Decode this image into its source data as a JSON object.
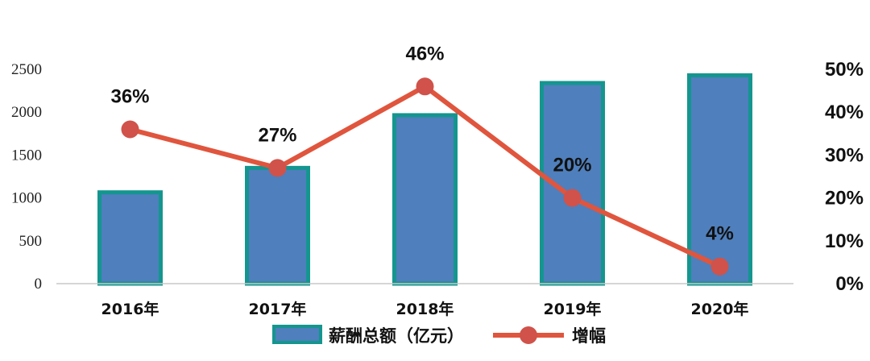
{
  "chart_data": {
    "type": "bar",
    "categories": [
      "2016年",
      "2017年",
      "2018年",
      "2019年",
      "2020年"
    ],
    "series": [
      {
        "name": "薪酬总额（亿元）",
        "type": "bar",
        "axis": "left",
        "values": [
          1065,
          1350,
          1965,
          2340,
          2430
        ]
      },
      {
        "name": "增幅",
        "type": "line",
        "axis": "right",
        "values": [
          36,
          27,
          46,
          20,
          4
        ],
        "labels": [
          "36%",
          "27%",
          "46%",
          "20%",
          "4%"
        ]
      }
    ],
    "y_left": {
      "ticks": [
        "0",
        "500",
        "1000",
        "1500",
        "2000",
        "2500"
      ],
      "ylim": [
        0,
        2500
      ]
    },
    "y_right": {
      "ticks": [
        "0%",
        "10%",
        "20%",
        "30%",
        "40%",
        "50%"
      ],
      "ylim": [
        0,
        50
      ]
    },
    "legend_position": "bottom",
    "grid": false,
    "colors": {
      "bar_fill": "#4f7fbc",
      "bar_border": "#14968f",
      "line": "#e0553d",
      "marker": "#d0524a"
    }
  }
}
